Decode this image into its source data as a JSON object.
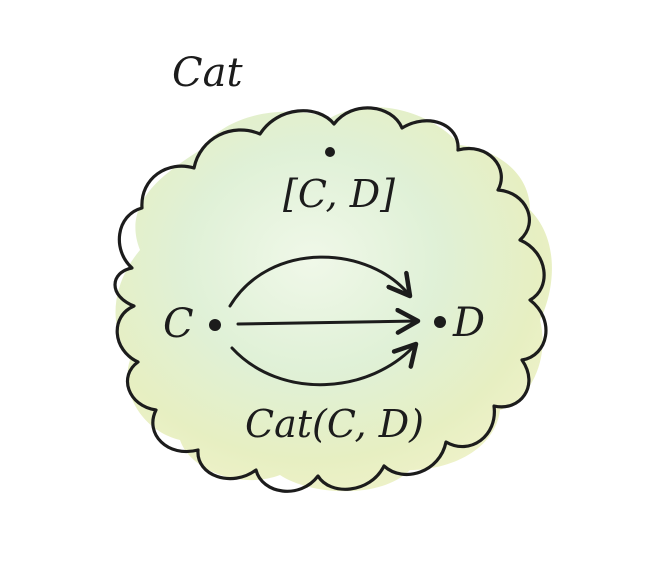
{
  "diagram": {
    "category_label": "Cat",
    "functor_category_label": "[C, D]",
    "source_label": "C",
    "target_label": "D",
    "hom_label": "Cat(C, D)",
    "colors": {
      "ink": "#1c1c1c",
      "wash_green": "#dcefd2",
      "wash_yellow": "#e9efb4",
      "paper": "#ffffff"
    }
  }
}
